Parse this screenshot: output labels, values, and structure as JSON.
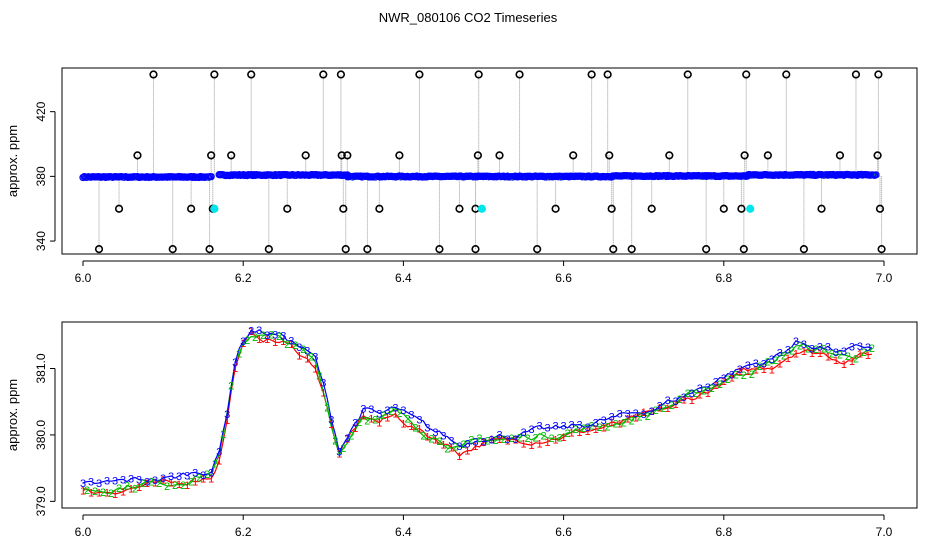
{
  "title": "NWR_080106  CO2 Timeseries",
  "colors": {
    "run1": "#ff0000",
    "run2": "#00bb00",
    "run3": "#0000ff",
    "flag": "#00e5ee",
    "outlier": "#000000",
    "stem": "#999999",
    "frame": "#000000"
  },
  "chart_data": [
    {
      "type": "scatter",
      "name": "top-panel",
      "ylabel": "approx. ppm",
      "xlabel": "",
      "xlim": [
        6.0,
        7.0
      ],
      "ylim": [
        332,
        447
      ],
      "x_ticks": [
        6.0,
        6.2,
        6.4,
        6.6,
        6.8,
        7.0
      ],
      "x_tick_labels": [
        "6.0",
        "6.2",
        "6.4",
        "6.6",
        "6.8",
        "7.0"
      ],
      "y_ticks": [
        340,
        380,
        420
      ],
      "y_tick_labels": [
        "340",
        "380",
        "420"
      ],
      "grid": false,
      "legend": "none",
      "baseline_series": [
        {
          "run": "3",
          "x_start": 6.0,
          "x_end": 6.16,
          "y": 379.6
        },
        {
          "run": "3",
          "x_start": 6.17,
          "x_end": 6.33,
          "y": 380.8
        },
        {
          "run": "3",
          "x_start": 6.33,
          "x_end": 6.5,
          "y": 379.9
        },
        {
          "run": "3",
          "x_start": 6.5,
          "x_end": 6.66,
          "y": 379.9
        },
        {
          "run": "3",
          "x_start": 6.66,
          "x_end": 6.83,
          "y": 380.2
        },
        {
          "run": "3",
          "x_start": 6.83,
          "x_end": 6.99,
          "y": 380.9
        }
      ],
      "outliers": [
        [
          6.02,
          335
        ],
        [
          6.088,
          443
        ],
        [
          6.068,
          393
        ],
        [
          6.045,
          360
        ],
        [
          6.112,
          335
        ],
        [
          6.135,
          360
        ],
        [
          6.158,
          335
        ],
        [
          6.16,
          393
        ],
        [
          6.162,
          360
        ],
        [
          6.164,
          443
        ],
        [
          6.185,
          393
        ],
        [
          6.21,
          443
        ],
        [
          6.232,
          335
        ],
        [
          6.255,
          360
        ],
        [
          6.278,
          393
        ],
        [
          6.3,
          443
        ],
        [
          6.322,
          443
        ],
        [
          6.323,
          393
        ],
        [
          6.325,
          360
        ],
        [
          6.328,
          335
        ],
        [
          6.33,
          393
        ],
        [
          6.355,
          335
        ],
        [
          6.37,
          360
        ],
        [
          6.395,
          393
        ],
        [
          6.42,
          443
        ],
        [
          6.445,
          335
        ],
        [
          6.47,
          360
        ],
        [
          6.49,
          360
        ],
        [
          6.494,
          443
        ],
        [
          6.493,
          393
        ],
        [
          6.49,
          335
        ],
        [
          6.52,
          393
        ],
        [
          6.545,
          443
        ],
        [
          6.567,
          335
        ],
        [
          6.59,
          360
        ],
        [
          6.612,
          393
        ],
        [
          6.635,
          443
        ],
        [
          6.655,
          443
        ],
        [
          6.657,
          393
        ],
        [
          6.66,
          360
        ],
        [
          6.662,
          335
        ],
        [
          6.685,
          335
        ],
        [
          6.71,
          360
        ],
        [
          6.732,
          393
        ],
        [
          6.755,
          443
        ],
        [
          6.778,
          335
        ],
        [
          6.8,
          360
        ],
        [
          6.822,
          360
        ],
        [
          6.826,
          393
        ],
        [
          6.828,
          443
        ],
        [
          6.825,
          335
        ],
        [
          6.855,
          393
        ],
        [
          6.878,
          443
        ],
        [
          6.9,
          335
        ],
        [
          6.922,
          360
        ],
        [
          6.945,
          393
        ],
        [
          6.965,
          443
        ],
        [
          6.992,
          393
        ],
        [
          6.993,
          443
        ],
        [
          6.995,
          360
        ],
        [
          6.997,
          335
        ]
      ],
      "flagged": [
        [
          6.164,
          360
        ],
        [
          6.498,
          360
        ],
        [
          6.833,
          360
        ]
      ]
    },
    {
      "type": "line",
      "name": "bottom-panel",
      "ylabel": "approx. ppm",
      "xlabel": "",
      "xlim": [
        6.0,
        7.0
      ],
      "ylim": [
        378.9,
        381.7
      ],
      "x_ticks": [
        6.0,
        6.2,
        6.4,
        6.6,
        6.8,
        7.0
      ],
      "x_tick_labels": [
        "6.0",
        "6.2",
        "6.4",
        "6.6",
        "6.8",
        "7.0"
      ],
      "y_ticks": [
        379.0,
        380.0,
        381.0
      ],
      "y_tick_labels": [
        "379.0",
        "380.0",
        "381.0"
      ],
      "grid": false,
      "legend": "none",
      "point_labels": [
        "1",
        "2",
        "3"
      ],
      "profile_x": [
        6.0,
        6.02,
        6.05,
        6.08,
        6.11,
        6.14,
        6.16,
        6.17,
        6.18,
        6.19,
        6.2,
        6.21,
        6.23,
        6.25,
        6.27,
        6.29,
        6.3,
        6.31,
        6.32,
        6.33,
        6.35,
        6.37,
        6.39,
        6.41,
        6.43,
        6.45,
        6.47,
        6.5,
        6.53,
        6.56,
        6.6,
        6.64,
        6.68,
        6.72,
        6.76,
        6.8,
        6.83,
        6.86,
        6.89,
        6.92,
        6.95,
        6.97,
        6.99
      ],
      "profile_y": [
        379.2,
        379.2,
        379.25,
        379.3,
        379.3,
        379.4,
        379.45,
        379.7,
        380.3,
        381.1,
        381.4,
        381.55,
        381.5,
        381.45,
        381.3,
        381.1,
        380.7,
        380.2,
        379.75,
        379.95,
        380.35,
        380.25,
        380.35,
        380.2,
        380.05,
        379.95,
        379.8,
        379.95,
        379.95,
        380.0,
        380.05,
        380.15,
        380.25,
        380.4,
        380.6,
        380.85,
        381.0,
        381.1,
        381.35,
        381.3,
        381.2,
        381.25,
        381.3
      ]
    }
  ]
}
